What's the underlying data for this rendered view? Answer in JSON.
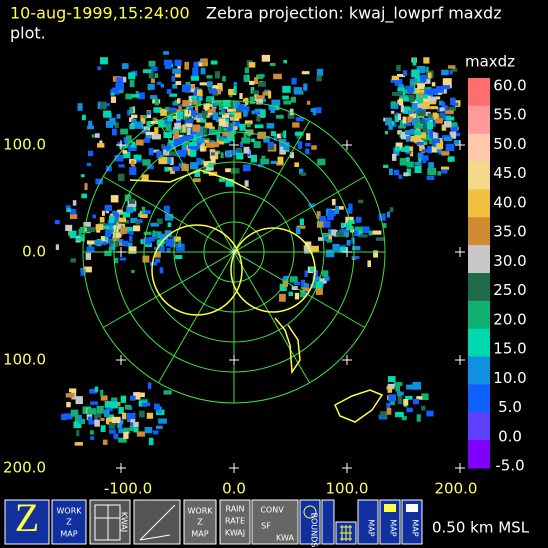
{
  "header": {
    "timestamp": "10-aug-1999,15:24:00",
    "title": "Zebra projection: kwaj_lowprf maxdz",
    "title_cont": "plot."
  },
  "plot": {
    "y_labels": [
      "100.0",
      "0.0",
      "100.0",
      "200.0"
    ],
    "x_labels": [
      "-100.0",
      "0.0",
      "100.0",
      "200.0"
    ]
  },
  "colorbar": {
    "title": "maxdz",
    "labels": [
      "60.0",
      "55.0",
      "50.0",
      "45.0",
      "40.0",
      "35.0",
      "30.0",
      "25.0",
      "20.0",
      "15.0",
      "10.0",
      "5.0",
      "0.0",
      "-5.0"
    ],
    "colors": [
      "#ff6e6e",
      "#ff9a9a",
      "#ffc8a8",
      "#f5d98a",
      "#f0c040",
      "#d08a30",
      "#c8c8c8",
      "#1f6b4a",
      "#10b070",
      "#00d8b0",
      "#1090e0",
      "#1060ff",
      "#6040ff",
      "#8000ff"
    ]
  },
  "toolbar": {
    "work1": [
      "WORK",
      "Z",
      "MAP"
    ],
    "map_kwaj": "KWAJ",
    "work2": [
      "WORK",
      "Z",
      "MAP"
    ],
    "rain": [
      "RAIN",
      "RATE",
      "KWAJ"
    ],
    "conv": [
      "CONV",
      "SF",
      "KWA"
    ],
    "bounds": "BOUNDS",
    "maps": [
      "MAP",
      "MAP",
      "MAP"
    ],
    "altitude": "0.50 km MSL"
  }
}
